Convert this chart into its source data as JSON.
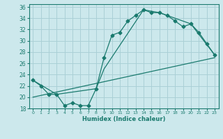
{
  "xlabel": "Humidex (Indice chaleur)",
  "bg_color": "#cce8ec",
  "grid_color": "#aad0d6",
  "line_color": "#1a7a6e",
  "xlim": [
    -0.5,
    23.5
  ],
  "ylim": [
    18,
    36.5
  ],
  "xticks": [
    0,
    1,
    2,
    3,
    4,
    5,
    6,
    7,
    8,
    9,
    10,
    11,
    12,
    13,
    14,
    15,
    16,
    17,
    18,
    19,
    20,
    21,
    22,
    23
  ],
  "yticks": [
    18,
    20,
    22,
    24,
    26,
    28,
    30,
    32,
    34,
    36
  ],
  "curve1_x": [
    0,
    1,
    2,
    3,
    4,
    5,
    6,
    7,
    8,
    9,
    10,
    11,
    12,
    13,
    14,
    15,
    16,
    17,
    18,
    19,
    20,
    21,
    22,
    23
  ],
  "curve1_y": [
    23.0,
    22.0,
    20.5,
    20.5,
    18.5,
    19.0,
    18.5,
    18.5,
    21.5,
    27.0,
    31.0,
    31.5,
    33.5,
    34.5,
    35.5,
    35.0,
    35.0,
    34.5,
    33.5,
    32.5,
    33.0,
    31.5,
    29.5,
    27.5
  ],
  "curve2_x": [
    0,
    3,
    8,
    9,
    14,
    16,
    20,
    23
  ],
  "curve2_y": [
    23.0,
    20.5,
    21.5,
    25.0,
    35.5,
    35.0,
    33.0,
    27.5
  ],
  "curve3_x": [
    0,
    23
  ],
  "curve3_y": [
    20.0,
    27.0
  ]
}
